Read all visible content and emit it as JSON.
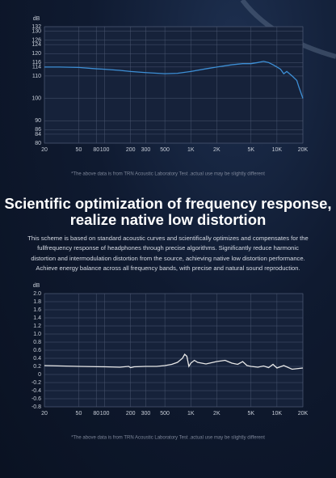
{
  "chart_data": [
    {
      "type": "line",
      "ylabel": "dB",
      "xscale": "log",
      "grid": true,
      "color": "#3d8fd6",
      "xlim": [
        20,
        20000
      ],
      "xticks": [
        20,
        50,
        80,
        100,
        200,
        300,
        500,
        {
          "value": 1000,
          "label": "1K"
        },
        {
          "value": 2000,
          "label": "2K"
        },
        {
          "value": 5000,
          "label": "5K"
        },
        {
          "value": 10000,
          "label": "10K"
        },
        {
          "value": 20000,
          "label": "20K"
        }
      ],
      "ylim": [
        80,
        132
      ],
      "yticks": [
        80,
        84,
        86,
        90,
        100,
        110,
        114,
        116,
        120,
        124,
        126,
        130,
        132
      ],
      "x": [
        20,
        30,
        50,
        80,
        100,
        150,
        200,
        300,
        500,
        700,
        1000,
        1500,
        2000,
        3000,
        4000,
        5000,
        6000,
        7000,
        8000,
        9000,
        10000,
        11000,
        12000,
        13000,
        15000,
        17000,
        18000,
        20000
      ],
      "values": [
        114,
        114,
        113.8,
        113.2,
        113,
        112.5,
        112,
        111.5,
        111,
        111.2,
        112,
        113.2,
        114,
        115,
        115.5,
        115.5,
        116,
        116.5,
        116,
        115,
        114,
        113,
        111,
        112,
        110,
        108,
        105,
        100
      ],
      "note": "*The above data is from TRN Acoustic Laboratory Test .actual use may be slightly different"
    },
    {
      "type": "line",
      "ylabel": "dB",
      "xscale": "log",
      "grid": true,
      "color": "#e8e8e8",
      "xlim": [
        20,
        20000
      ],
      "xticks": [
        20,
        50,
        80,
        100,
        200,
        300,
        500,
        {
          "value": 1000,
          "label": "1K"
        },
        {
          "value": 2000,
          "label": "2K"
        },
        {
          "value": 5000,
          "label": "5K"
        },
        {
          "value": 10000,
          "label": "10K"
        },
        {
          "value": 20000,
          "label": "20K"
        }
      ],
      "ylim": [
        -0.8,
        2.0
      ],
      "yticks": [
        -0.8,
        -0.6,
        -0.4,
        -0.2,
        0,
        0.2,
        0.4,
        0.6,
        0.8,
        {
          "value": 1,
          "label": "1.0"
        },
        1.2,
        1.4,
        1.6,
        1.8,
        {
          "value": 2,
          "label": "2.0"
        }
      ],
      "x": [
        20,
        50,
        100,
        150,
        190,
        200,
        220,
        300,
        400,
        500,
        600,
        700,
        800,
        850,
        900,
        950,
        1000,
        1100,
        1200,
        1500,
        2000,
        2500,
        3000,
        3500,
        4000,
        4500,
        5000,
        6000,
        7000,
        8000,
        9000,
        10000,
        12000,
        15000,
        20000
      ],
      "values": [
        0.22,
        0.2,
        0.19,
        0.18,
        0.2,
        0.17,
        0.19,
        0.2,
        0.2,
        0.22,
        0.25,
        0.3,
        0.4,
        0.5,
        0.45,
        0.2,
        0.28,
        0.35,
        0.3,
        0.26,
        0.32,
        0.35,
        0.28,
        0.25,
        0.32,
        0.22,
        0.2,
        0.18,
        0.21,
        0.17,
        0.25,
        0.16,
        0.22,
        0.13,
        0.16
      ],
      "note": "*The above data is from TRN Acoustic Laboratory Test .actual use may be slightly different"
    }
  ],
  "heading": [
    "Scientific optimization of frequency response,",
    "realize native low distortion"
  ],
  "paragraph": "This scheme is based on standard acoustic curves and scientifically optimizes and compensates for the fullfrequency response of headphones through precise algorithms. Significantly reduce harmonic distortion and intermodulation distortion from the source, achieving native low distortion performance. Achieve energy balance across all frequency bands, with precise and natural sound reproduction."
}
